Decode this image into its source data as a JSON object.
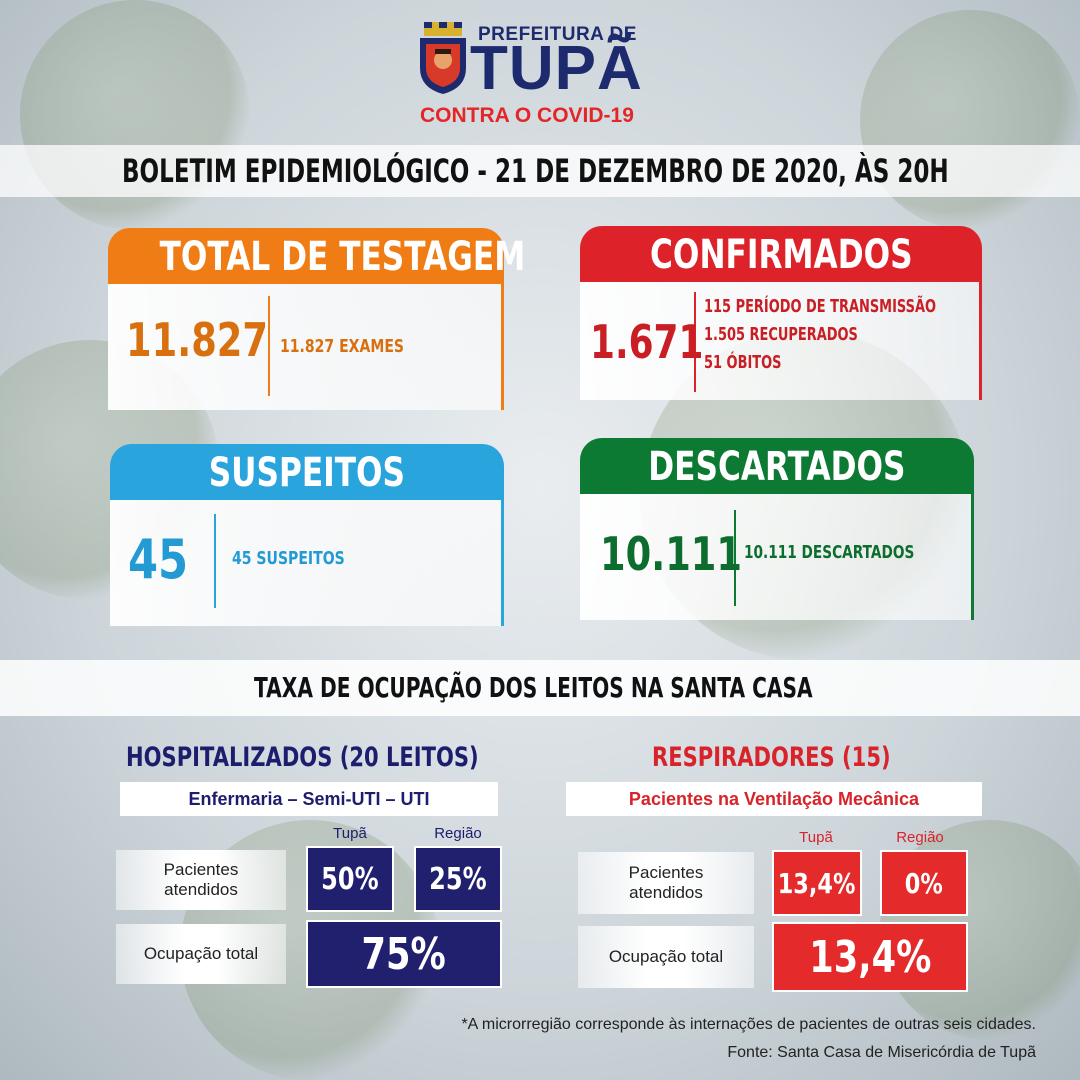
{
  "header": {
    "prefeitura": "PREFEITURA DE",
    "city": "TUPÃ",
    "campaign": "CONTRA O COVID-19",
    "crest_icon": "city-crest-icon"
  },
  "bulletin_title": "BOLETIM EPIDEMIOLÓGICO - 21 DE DEZEMBRO DE 2020, ÀS 20H",
  "cards": {
    "testagem": {
      "title": "TOTAL DE TESTAGEM",
      "value": "11.827",
      "detail": "11.827 EXAMES",
      "color": "#ef7c15"
    },
    "confirmados": {
      "title": "CONFIRMADOS",
      "value": "1.671",
      "details": [
        "115 PERÍODO DE TRANSMISSÃO",
        "1.505 RECUPERADOS",
        "51 ÓBITOS"
      ],
      "color": "#dd2329"
    },
    "suspeitos": {
      "title": "SUSPEITOS",
      "value": "45",
      "detail": "45 SUSPEITOS",
      "color": "#2aa4dd"
    },
    "descartados": {
      "title": "DESCARTADOS",
      "value": "10.111",
      "detail": "10.111 DESCARTADOS",
      "color": "#0d7a34"
    }
  },
  "occupancy_title": "TAXA DE OCUPAÇÃO DOS LEITOS NA SANTA CASA",
  "hospitalizados": {
    "title": "HOSPITALIZADOS (20 LEITOS)",
    "subtitle": "Enfermaria – Semi-UTI – UTI",
    "col_tupa": "Tupã",
    "col_regiao": "Região",
    "row1_label_line1": "Pacientes",
    "row1_label_line2": "atendidos",
    "row1_tupa": "50%",
    "row1_regiao": "25%",
    "row2_label": "Ocupação total",
    "row2_total": "75%",
    "color": "#20206e"
  },
  "respiradores": {
    "title": "RESPIRADORES (15)",
    "subtitle": "Pacientes na Ventilação Mecânica",
    "col_tupa": "Tupã",
    "col_regiao": "Região",
    "row1_label_line1": "Pacientes",
    "row1_label_line2": "atendidos",
    "row1_tupa": "13,4%",
    "row1_regiao": "0%",
    "row2_label": "Ocupação total",
    "row2_total": "13,4%",
    "color": "#e42a2a"
  },
  "footer": {
    "note": "*A microrregião corresponde às internações de pacientes de outras seis cidades.",
    "source": "Fonte: Santa Casa de Misericórdia de Tupã"
  }
}
